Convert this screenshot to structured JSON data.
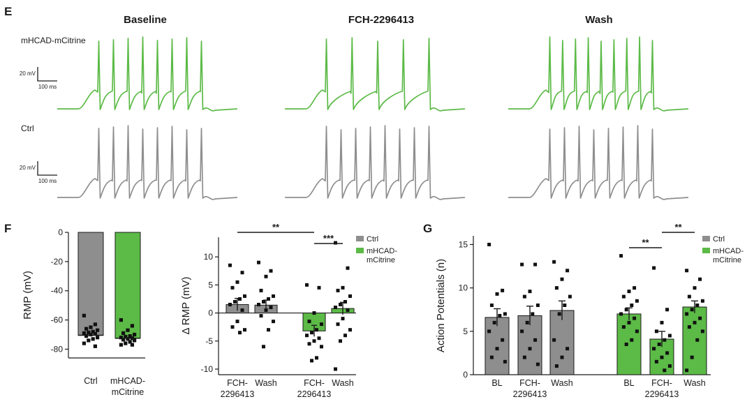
{
  "colors": {
    "ctrl": "#8e8e8e",
    "mhcad": "#5cba47",
    "mhcad_dark": "#3f9a2f",
    "ink": "#1a1a1a",
    "dot": "#111111"
  },
  "panel_e": {
    "label": "E",
    "columns": [
      "Baseline",
      "FCH-2296413",
      "Wash"
    ],
    "rows": [
      "mHCAD-mCitrine",
      "Ctrl"
    ],
    "scale_voltage": "20 mV",
    "scale_time": "100 ms",
    "traces": [
      {
        "row": "mHCAD-mCitrine",
        "column": "Baseline",
        "spike_count": 8
      },
      {
        "row": "mHCAD-mCitrine",
        "column": "FCH-2296413",
        "spike_count": 5
      },
      {
        "row": "mHCAD-mCitrine",
        "column": "Wash",
        "spike_count": 9
      },
      {
        "row": "Ctrl",
        "column": "Baseline",
        "spike_count": 8
      },
      {
        "row": "Ctrl",
        "column": "FCH-2296413",
        "spike_count": 8
      },
      {
        "row": "Ctrl",
        "column": "Wash",
        "spike_count": 8
      }
    ]
  },
  "chart_data": [
    {
      "id": "F-left",
      "panel_label": "F",
      "type": "bar",
      "ylabel": "RMP (mV)",
      "ylim": [
        -86,
        0
      ],
      "yticks": [
        0,
        -20,
        -40,
        -60,
        -80
      ],
      "categories": [
        "Ctrl",
        "mHCAD-mCitrine"
      ],
      "series": [
        {
          "name": "Ctrl",
          "color": "ctrl",
          "value": -70.5,
          "points": [
            -57,
            -63,
            -65,
            -66,
            -67,
            -68,
            -68.5,
            -69,
            -69.5,
            -70,
            -71,
            -72,
            -73,
            -74,
            -76,
            -78
          ]
        },
        {
          "name": "mHCAD-mCitrine",
          "color": "mhcad",
          "value": -72.5,
          "points": [
            -60,
            -64,
            -67,
            -69,
            -70,
            -71,
            -71.5,
            -72,
            -72.5,
            -73,
            -73.5,
            -74,
            -75,
            -76,
            -77,
            -77
          ]
        }
      ]
    },
    {
      "id": "F-right",
      "type": "bar",
      "ylabel": "Δ RMP (mV)",
      "ylim": [
        -11,
        13.5
      ],
      "yticks": [
        10,
        5,
        0,
        -5,
        -10
      ],
      "categories": [
        [
          "FCH-",
          "2296413"
        ],
        [
          "Wash"
        ],
        [
          "FCH-",
          "2296413"
        ],
        [
          "Wash"
        ]
      ],
      "legend": [
        {
          "label": "Ctrl",
          "color": "ctrl"
        },
        {
          "label": [
            "mHCAD-",
            "mCitrine"
          ],
          "color": "mhcad"
        }
      ],
      "series": [
        {
          "name": "Ctrl",
          "color": "ctrl",
          "means": [
            1.5,
            1.4
          ],
          "sem": [
            1.1,
            0.9
          ],
          "points": [
            [
              8.5,
              7.2,
              5.5,
              4.5,
              3.0,
              2.5,
              2.0,
              1.5,
              0.5,
              -1.5,
              -2.5,
              -3.0,
              -3.5
            ],
            [
              9.0,
              7.5,
              6.5,
              4.0,
              3.0,
              2.5,
              2.0,
              1.5,
              1.0,
              0.5,
              -0.5,
              -1.5,
              -3.0,
              -6.0
            ]
          ]
        },
        {
          "name": "mHCAD-mCitrine",
          "color": "mhcad",
          "means": [
            -3.2,
            0.8
          ],
          "sem": [
            1.0,
            1.1
          ],
          "points": [
            [
              5.0,
              4.5,
              0.0,
              -1.5,
              -2.0,
              -3.0,
              -3.5,
              -4.0,
              -4.5,
              -5.0,
              -5.5,
              -6.0,
              -8.0,
              -8.5
            ],
            [
              12.5,
              8.0,
              4.5,
              4.0,
              3.0,
              2.0,
              1.5,
              1.0,
              0.5,
              -1.0,
              -2.0,
              -3.0,
              -4.0,
              -5.0,
              -10.0
            ]
          ]
        }
      ],
      "significance": [
        {
          "from": 0,
          "to": 2,
          "label": "**"
        },
        {
          "from": 2,
          "to": 3,
          "label": "***"
        }
      ]
    },
    {
      "id": "G",
      "panel_label": "G",
      "type": "bar",
      "ylabel": "Action Potentials (n)",
      "ylim": [
        0,
        16
      ],
      "yticks": [
        0,
        5,
        10,
        15
      ],
      "categories": [
        [
          "BL"
        ],
        [
          "FCH-",
          "2296413"
        ],
        [
          "Wash"
        ],
        [
          "BL"
        ],
        [
          "FCH-",
          "2296413"
        ],
        [
          "Wash"
        ]
      ],
      "legend": [
        {
          "label": "Ctrl",
          "color": "ctrl"
        },
        {
          "label": [
            "mHCAD-",
            "mCitrine"
          ],
          "color": "mhcad"
        }
      ],
      "series": [
        {
          "name": "Ctrl",
          "color": "ctrl",
          "means": [
            6.6,
            6.8,
            7.4
          ],
          "sem": [
            1.0,
            1.1,
            1.1
          ],
          "points": [
            [
              15,
              9.7,
              9.3,
              8.0,
              7.0,
              6.8,
              6.0,
              5.0,
              4.0,
              3.0,
              2.0,
              1.5
            ],
            [
              12.7,
              12.7,
              9.6,
              9.0,
              8.0,
              7.0,
              6.0,
              5.0,
              4.0,
              3.0,
              2.0,
              1.2
            ],
            [
              13.0,
              12.0,
              11.0,
              10.0,
              9.0,
              8.0,
              7.0,
              4.0,
              3.0,
              2.0,
              1.0
            ]
          ]
        },
        {
          "name": "mHCAD-mCitrine",
          "color": "mhcad",
          "means": [
            7.0,
            4.1,
            7.8
          ],
          "sem": [
            0.7,
            0.9,
            0.7
          ],
          "points": [
            [
              13.7,
              10.0,
              9.6,
              9.0,
              8.5,
              8.0,
              7.5,
              7.0,
              6.5,
              6.0,
              5.5,
              5.0,
              4.0,
              3.5
            ],
            [
              12.3,
              7.5,
              6.0,
              5.0,
              4.5,
              4.0,
              3.5,
              3.0,
              2.5,
              2.0,
              1.5,
              1.0,
              0.5
            ],
            [
              12.0,
              11.0,
              10.0,
              9.0,
              8.5,
              8.0,
              7.5,
              7.0,
              6.5,
              6.0,
              5.5,
              5.0,
              4.0,
              2.0,
              0.5
            ]
          ]
        }
      ],
      "significance": [
        {
          "from": 3,
          "to": 4,
          "label": "**"
        },
        {
          "from": 4,
          "to": 5,
          "label": "**"
        }
      ]
    }
  ]
}
